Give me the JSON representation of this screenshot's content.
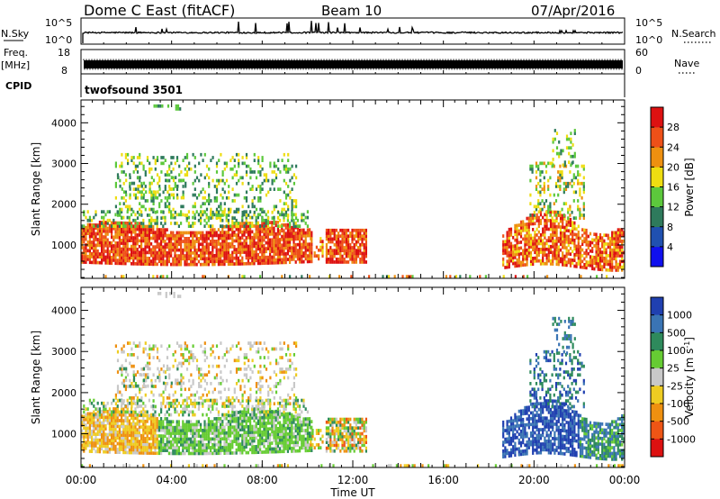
{
  "header": {
    "title": "Dome C East (fitACF)",
    "beam": "Beam 10",
    "date": "07/Apr/2016"
  },
  "nsky_panel": {
    "left_label": "N.Sky",
    "right_label": "N.Search",
    "tick_top": "10^5",
    "tick_bottom": "10^0",
    "right_tick_top": "10^5",
    "right_tick_bottom": "10^0"
  },
  "freq_panel": {
    "left_label": "Freq.",
    "left_unit": "[MHz]",
    "right_label": "Nave",
    "left_tick_top": "18",
    "left_tick_bottom": "8",
    "right_tick_top": "60",
    "right_tick_bottom": "0"
  },
  "cpid_panel": {
    "label": "CPID",
    "program": "twofsound 3501"
  },
  "chart_data": [
    {
      "type": "heatmap",
      "quantity": "Power",
      "ylabel": "Slant Range [km]",
      "xlabel": "Time UT",
      "x_ticks": [
        "00:00",
        "04:00",
        "08:00",
        "12:00",
        "16:00",
        "20:00",
        "00:00"
      ],
      "x_range_hours": [
        0,
        24
      ],
      "y_ticks": [
        "1000",
        "2000",
        "3000",
        "4000"
      ],
      "y_range_km": [
        180,
        4560
      ],
      "colorbar": {
        "label": "Power [dB]",
        "ticks": [
          "4",
          "8",
          "12",
          "16",
          "20",
          "24",
          "28"
        ],
        "range": [
          0,
          32
        ],
        "colors": [
          "#1010ee",
          "#2050b0",
          "#2e7a5c",
          "#5cc83c",
          "#eedd11",
          "#ee9010",
          "#ee5018",
          "#dd1111"
        ]
      },
      "echo_regions": [
        {
          "t": [
            0,
            10.2
          ],
          "range_km": [
            500,
            1800
          ],
          "dominant": "high power 20-30 dB"
        },
        {
          "t": [
            10.8,
            12.6
          ],
          "range_km": [
            600,
            1500
          ],
          "dominant": "high power 20-30 dB"
        },
        {
          "t": [
            1.5,
            9.5
          ],
          "range_km": [
            1700,
            3400
          ],
          "dominant": "medium power 12-20 dB"
        },
        {
          "t": [
            18.3,
            24
          ],
          "range_km": [
            400,
            2200
          ],
          "dominant": "high power 20-30 dB"
        },
        {
          "t": [
            20,
            22
          ],
          "range_km": [
            2300,
            3900
          ],
          "dominant": "medium power 12-20 dB"
        }
      ]
    },
    {
      "type": "heatmap",
      "quantity": "Velocity",
      "ylabel": "Slant Range [km]",
      "xlabel": "Time UT",
      "x_ticks": [
        "00:00",
        "04:00",
        "08:00",
        "12:00",
        "16:00",
        "20:00",
        "00:00"
      ],
      "x_range_hours": [
        0,
        24
      ],
      "y_ticks": [
        "1000",
        "2000",
        "3000",
        "4000"
      ],
      "y_range_km": [
        180,
        4560
      ],
      "colorbar": {
        "label": "Velocity [m s^-1]",
        "ticks": [
          "1000",
          "500",
          "100",
          "25",
          "-25",
          "-100",
          "-500",
          "-1000"
        ],
        "colors": [
          "#2040b0",
          "#3a74b4",
          "#2e8a5c",
          "#66cc33",
          "#c8c8c8",
          "#eecc22",
          "#ee9010",
          "#ee5515",
          "#dd1111"
        ]
      },
      "echo_regions": [
        {
          "t": [
            0,
            3.5
          ],
          "range_km": [
            500,
            1800
          ],
          "dominant": "negative -100 to -500 m/s"
        },
        {
          "t": [
            3.5,
            10.2
          ],
          "range_km": [
            600,
            1800
          ],
          "dominant": "positive 100 to 500 m/s"
        },
        {
          "t": [
            10.8,
            12.6
          ],
          "range_km": [
            600,
            1500
          ],
          "dominant": "mixed"
        },
        {
          "t": [
            1.5,
            9.5
          ],
          "range_km": [
            1700,
            3400
          ],
          "dominant": "near zero -25 to 25 m/s"
        },
        {
          "t": [
            18.3,
            24
          ],
          "range_km": [
            400,
            2200
          ],
          "dominant": "positive 500 to 1000 m/s"
        }
      ]
    }
  ]
}
